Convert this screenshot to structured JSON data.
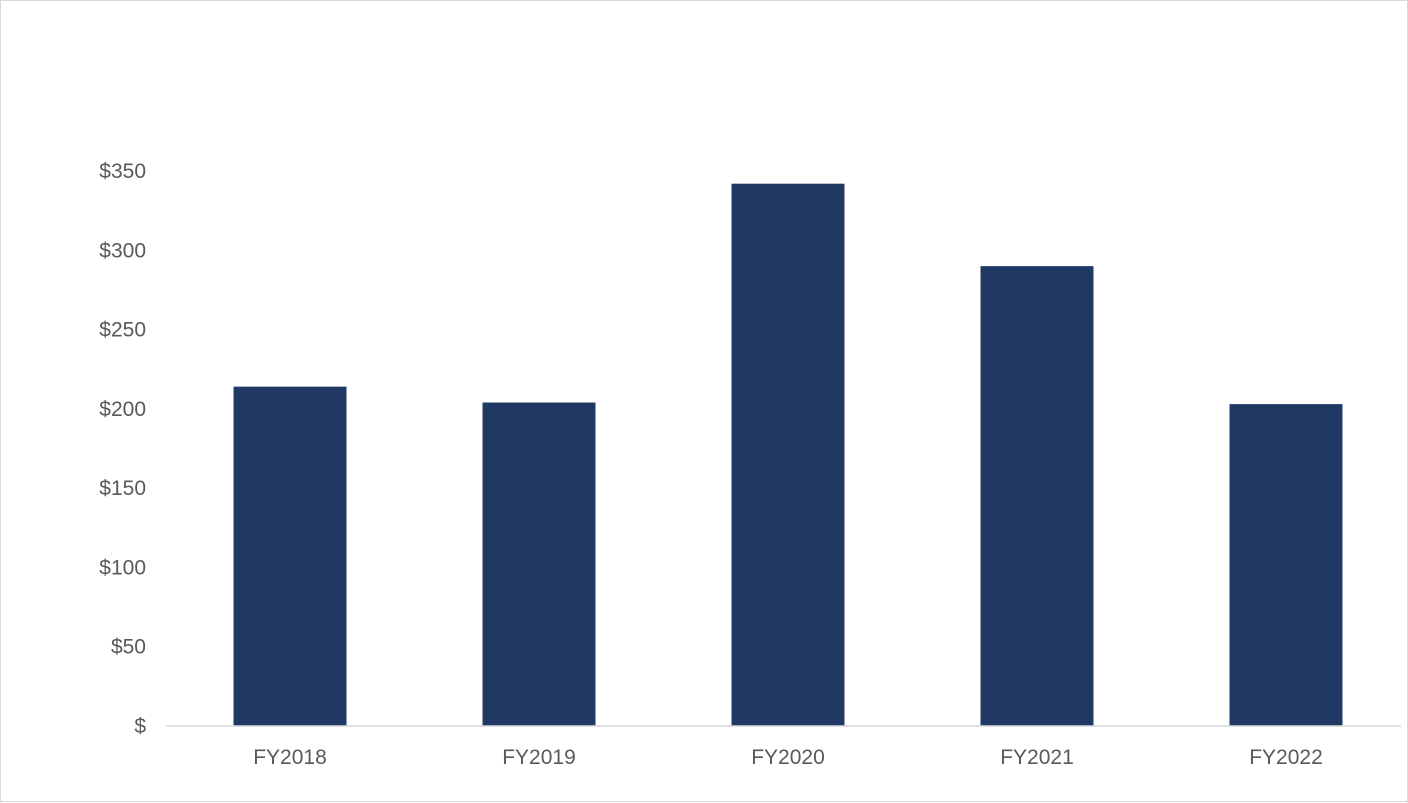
{
  "chart_data": {
    "type": "bar",
    "title": "",
    "xlabel": "",
    "ylabel": "",
    "categories": [
      "FY2018",
      "FY2019",
      "FY2020",
      "FY2021",
      "FY2022"
    ],
    "values": [
      214,
      204,
      342,
      290,
      203
    ],
    "ylim": [
      0,
      350
    ],
    "yticks": [
      0,
      50,
      100,
      150,
      200,
      250,
      300,
      350
    ],
    "ytick_labels": [
      "$",
      "$50",
      "$100",
      "$150",
      "$200",
      "$250",
      "$300",
      "$350"
    ],
    "bar_color": "#203864",
    "grid": false,
    "legend": "none"
  }
}
